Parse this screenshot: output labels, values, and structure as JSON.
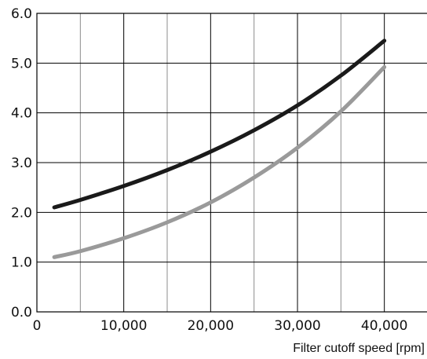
{
  "chart_data": {
    "type": "line",
    "title": "",
    "xlabel": "Filter cutoff speed [rpm]",
    "ylabel": "",
    "xlim": [
      0,
      45000
    ],
    "ylim": [
      0,
      6
    ],
    "x_ticks": [
      0,
      10000,
      20000,
      30000,
      40000
    ],
    "x_tick_labels": [
      "0",
      "10,000",
      "20,000",
      "30,000",
      "40,000"
    ],
    "y_ticks": [
      0,
      1,
      2,
      3,
      4,
      5,
      6
    ],
    "y_tick_labels": [
      "0.0",
      "1.0",
      "2.0",
      "3.0",
      "4.0",
      "5.0",
      "6.0"
    ],
    "grid": true,
    "grid_x_step": 5000,
    "grid_y_step": 1,
    "legend": "none",
    "series": [
      {
        "color": "#1a1a1a",
        "x": [
          2000,
          5000,
          10000,
          15000,
          20000,
          25000,
          30000,
          35000,
          40000
        ],
        "y": [
          2.1,
          2.25,
          2.53,
          2.85,
          3.22,
          3.65,
          4.15,
          4.75,
          5.45
        ]
      },
      {
        "color": "#9a9a9a",
        "x": [
          2000,
          5000,
          10000,
          15000,
          20000,
          25000,
          30000,
          35000,
          40000
        ],
        "y": [
          1.1,
          1.22,
          1.48,
          1.8,
          2.2,
          2.7,
          3.3,
          4.03,
          4.92
        ]
      }
    ],
    "colors": {
      "major_grid": "#000000",
      "minor_grid": "#8c8c8c"
    }
  }
}
